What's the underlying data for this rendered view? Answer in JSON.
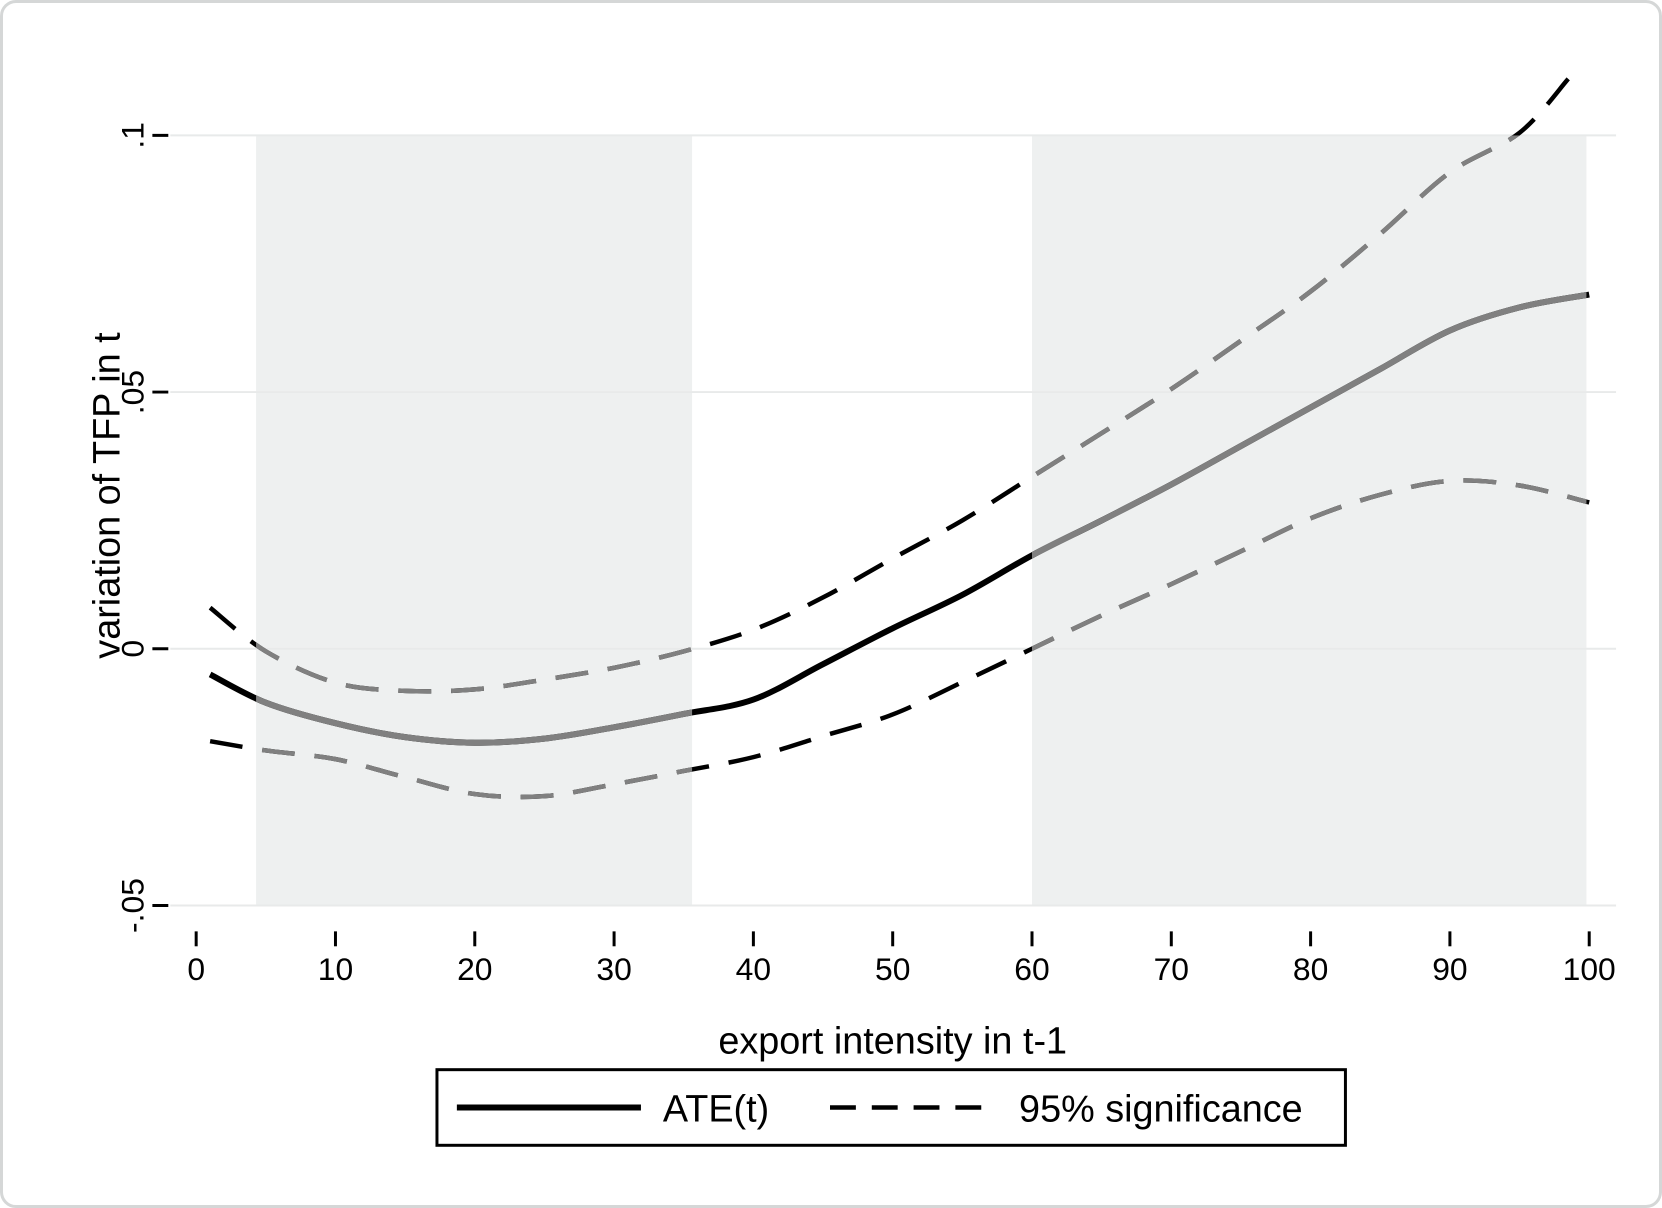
{
  "figure": {
    "y_axis": {
      "title": "variation of TFP in t",
      "tick_labels": [
        ".1",
        ".05",
        "0",
        "-.05"
      ],
      "tick_values": [
        0.1,
        0.05,
        0,
        -0.05
      ]
    },
    "x_axis": {
      "title": "export intensity in t-1",
      "tick_labels": [
        "0",
        "10",
        "20",
        "30",
        "40",
        "50",
        "60",
        "70",
        "80",
        "90",
        "100"
      ],
      "tick_values": [
        0,
        10,
        20,
        30,
        40,
        50,
        60,
        70,
        80,
        90,
        100
      ]
    },
    "legend": {
      "items": [
        {
          "label": "ATE(t)",
          "style": "solid"
        },
        {
          "label": "95% significance",
          "style": "dashed"
        }
      ]
    },
    "colors": {
      "line_black": "#000000",
      "line_gray_in_band": "#808080",
      "significance_band": "#eef0f0",
      "gridline": "#e8eaea",
      "gridline_on_band": "#f5f6f6",
      "frame_border": "#d5d7d7",
      "text": "#000000",
      "background": "#ffffff"
    }
  },
  "chart_data": {
    "type": "line",
    "title": "",
    "xlabel": "export intensity in t-1",
    "ylabel": "variation of TFP in t",
    "xlim": [
      0,
      100
    ],
    "ylim": [
      -0.05,
      0.1
    ],
    "grid": "horizontal-only",
    "legend_position": "bottom-outside",
    "significance_band_x_ranges": [
      [
        4.3,
        35.6
      ],
      [
        60,
        99.8
      ]
    ],
    "series": [
      {
        "name": "ATE(t)",
        "style": "solid",
        "x": [
          1,
          5,
          10,
          15,
          20,
          25,
          30,
          35,
          40,
          45,
          50,
          55,
          60,
          65,
          70,
          75,
          80,
          85,
          90,
          95,
          100
        ],
        "y": [
          -0.005,
          -0.0105,
          -0.0145,
          -0.0172,
          -0.0183,
          -0.0175,
          -0.0153,
          -0.0127,
          -0.0099,
          -0.003,
          0.004,
          0.0105,
          0.0182,
          0.025,
          0.032,
          0.0395,
          0.047,
          0.0545,
          0.062,
          0.0665,
          0.069
        ]
      },
      {
        "name": "95% CI upper",
        "style": "dashed",
        "x": [
          1,
          5,
          10,
          15,
          20,
          25,
          30,
          35,
          40,
          45,
          50,
          55,
          60,
          65,
          70,
          75,
          80,
          85,
          90,
          95,
          98.5
        ],
        "y": [
          0.008,
          -0.0005,
          -0.0066,
          -0.0082,
          -0.0079,
          -0.006,
          -0.0037,
          -0.0005,
          0.0037,
          0.01,
          0.0176,
          0.025,
          0.0335,
          0.042,
          0.0506,
          0.06,
          0.0696,
          0.0808,
          0.0928,
          0.1005,
          0.111
        ]
      },
      {
        "name": "95% CI lower",
        "style": "dashed",
        "x": [
          1,
          5,
          10,
          15,
          20,
          25,
          30,
          35,
          40,
          45,
          50,
          55,
          60,
          65,
          70,
          75,
          80,
          85,
          90,
          95,
          100
        ],
        "y": [
          -0.018,
          -0.0198,
          -0.0215,
          -0.025,
          -0.0283,
          -0.0287,
          -0.0264,
          -0.0238,
          -0.0211,
          -0.017,
          -0.0128,
          -0.0065,
          0.0,
          0.0065,
          0.0126,
          0.019,
          0.0254,
          0.03,
          0.0327,
          0.0318,
          0.0285
        ]
      }
    ],
    "notes": "Curves are drawn gray where they pass through the shaded significance bands, black elsewhere."
  }
}
